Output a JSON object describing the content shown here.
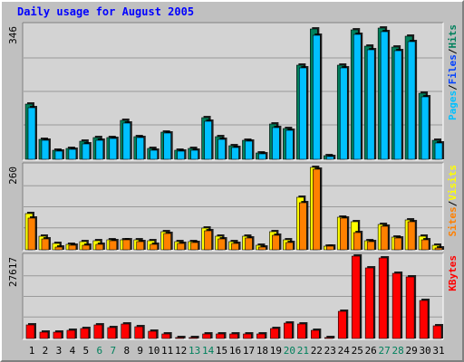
{
  "title": "Daily usage for August 2005",
  "colors": {
    "background": "#c0c0c0",
    "panel": "#d3d3d3",
    "title": "#0000ff",
    "hits": "#00805c",
    "files": "#0040ff",
    "pages": "#00c0ff",
    "sites": "#ff8000",
    "visits": "#ffff00",
    "kbytes": "#ff0000",
    "weekend_label": "#00805c",
    "weekday_label": "#000000"
  },
  "chart_data": [
    {
      "type": "bar",
      "title": "Daily usage for August 2005",
      "categories": [
        "1",
        "2",
        "3",
        "4",
        "5",
        "6",
        "7",
        "8",
        "9",
        "10",
        "11",
        "12",
        "13",
        "14",
        "15",
        "16",
        "17",
        "18",
        "19",
        "20",
        "21",
        "22",
        "23",
        "24",
        "25",
        "26",
        "27",
        "28",
        "29",
        "30",
        "31"
      ],
      "weekend_days": [
        "6",
        "7",
        "13",
        "14",
        "20",
        "21",
        "27",
        "28"
      ],
      "ymax_label": "346",
      "ylim": [
        0,
        346
      ],
      "grid": true,
      "legend": [
        "Pages",
        "Files",
        "Hits"
      ],
      "series": [
        {
          "name": "Hits",
          "values": [
            143,
            51,
            23,
            29,
            46,
            55,
            57,
            101,
            59,
            27,
            71,
            23,
            27,
            107,
            58,
            34,
            50,
            17,
            91,
            79,
            243,
            337,
            10,
            242,
            334,
            292,
            339,
            289,
            317,
            171,
            50
          ]
        },
        {
          "name": "Files",
          "values": [
            133,
            49,
            20,
            26,
            40,
            49,
            53,
            93,
            55,
            23,
            67,
            20,
            24,
            99,
            52,
            31,
            46,
            15,
            81,
            75,
            235,
            321,
            7,
            235,
            323,
            284,
            330,
            281,
            303,
            161,
            41
          ]
        },
        {
          "name": "Pages",
          "values": [
            0,
            0,
            0,
            0,
            0,
            0,
            0,
            0,
            0,
            0,
            0,
            0,
            0,
            0,
            0,
            0,
            0,
            0,
            0,
            0,
            0,
            0,
            0,
            0,
            0,
            0,
            0,
            0,
            0,
            0,
            0
          ]
        }
      ]
    },
    {
      "type": "bar",
      "categories": [
        "1",
        "2",
        "3",
        "4",
        "5",
        "6",
        "7",
        "8",
        "9",
        "10",
        "11",
        "12",
        "13",
        "14",
        "15",
        "16",
        "17",
        "18",
        "19",
        "20",
        "21",
        "22",
        "23",
        "24",
        "25",
        "26",
        "27",
        "28",
        "29",
        "30",
        "31"
      ],
      "ymax_label": "260",
      "ylim": [
        0,
        260
      ],
      "grid": true,
      "legend": [
        "Sites",
        "Visits"
      ],
      "series": [
        {
          "name": "Visits",
          "values": [
            111,
            42,
            19,
            18,
            25,
            27,
            32,
            32,
            30,
            27,
            55,
            24,
            25,
            66,
            43,
            26,
            41,
            14,
            55,
            30,
            162,
            254,
            11,
            102,
            88,
            27,
            77,
            39,
            93,
            41,
            15
          ]
        },
        {
          "name": "Sites",
          "values": [
            97,
            33,
            9,
            13,
            15,
            18,
            27,
            31,
            24,
            16,
            50,
            20,
            23,
            60,
            34,
            19,
            35,
            7,
            44,
            23,
            144,
            248,
            10,
            98,
            54,
            25,
            74,
            35,
            88,
            30,
            6
          ]
        }
      ]
    },
    {
      "type": "bar",
      "categories": [
        "1",
        "2",
        "3",
        "4",
        "5",
        "6",
        "7",
        "8",
        "9",
        "10",
        "11",
        "12",
        "13",
        "14",
        "15",
        "16",
        "17",
        "18",
        "19",
        "20",
        "21",
        "22",
        "23",
        "24",
        "25",
        "26",
        "27",
        "28",
        "29",
        "30",
        "31"
      ],
      "ymax_label": "27617",
      "ylim": [
        0,
        27617
      ],
      "grid": true,
      "legend": [
        "KBytes"
      ],
      "series": [
        {
          "name": "KBytes",
          "values": [
            4600,
            2000,
            2200,
            2600,
            3300,
            4500,
            3500,
            4900,
            3800,
            2300,
            1600,
            400,
            400,
            1600,
            1600,
            1500,
            1400,
            1400,
            3300,
            5100,
            5000,
            2600,
            300,
            9100,
            27600,
            23700,
            27000,
            21700,
            20500,
            12700,
            4400
          ]
        }
      ]
    }
  ]
}
